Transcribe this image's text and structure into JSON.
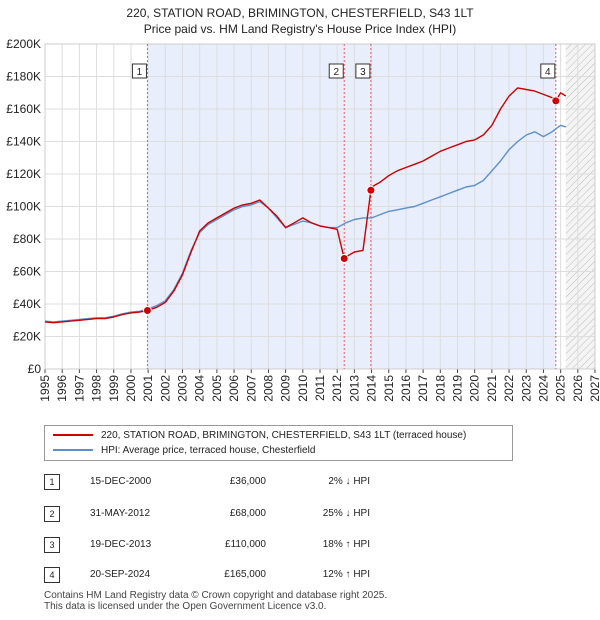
{
  "title_line1": "220, STATION ROAD, BRIMINGTON, CHESTERFIELD, S43 1LT",
  "title_line2": "Price paid vs. HM Land Registry's House Price Index (HPI)",
  "colors": {
    "property_line": "#cc0000",
    "hpi_line": "#5b8fd0",
    "shade": "#e8eefb",
    "grid": "#dddddd",
    "marker_dashed": "#e06060"
  },
  "legend": {
    "property": "220, STATION ROAD, BRIMINGTON, CHESTERFIELD, S43 1LT (terraced house)",
    "hpi": "HPI: Average price, terraced house, Chesterfield"
  },
  "transactions": [
    {
      "num": "1",
      "date": "15-DEC-2000",
      "price": "£36,000",
      "hpi": "2% ↓ HPI"
    },
    {
      "num": "2",
      "date": "31-MAY-2012",
      "price": "£68,000",
      "hpi": "25% ↓ HPI"
    },
    {
      "num": "3",
      "date": "19-DEC-2013",
      "price": "£110,000",
      "hpi": "18% ↑ HPI"
    },
    {
      "num": "4",
      "date": "20-SEP-2024",
      "price": "£165,000",
      "hpi": "12% ↑ HPI"
    }
  ],
  "footer": {
    "line1": "Contains HM Land Registry data © Crown copyright and database right 2025.",
    "line2": "This data is licensed under the Open Government Licence v3.0."
  },
  "chart_data": {
    "type": "line",
    "title": "220, STATION ROAD, BRIMINGTON, CHESTERFIELD, S43 1LT",
    "subtitle": "Price paid vs. HM Land Registry's House Price Index (HPI)",
    "xlabel": "",
    "ylabel": "",
    "xlim": [
      1995,
      2027
    ],
    "ylim": [
      0,
      200000
    ],
    "y_ticks": [
      0,
      20000,
      40000,
      60000,
      80000,
      100000,
      120000,
      140000,
      160000,
      180000,
      200000
    ],
    "y_tick_labels": [
      "£0",
      "£20K",
      "£40K",
      "£60K",
      "£80K",
      "£100K",
      "£120K",
      "£140K",
      "£160K",
      "£180K",
      "£200K"
    ],
    "x_ticks": [
      1995,
      1996,
      1997,
      1998,
      1999,
      2000,
      2001,
      2002,
      2003,
      2004,
      2005,
      2006,
      2007,
      2008,
      2009,
      2010,
      2011,
      2012,
      2013,
      2014,
      2015,
      2016,
      2017,
      2018,
      2019,
      2020,
      2021,
      2022,
      2023,
      2024,
      2025,
      2026,
      2027
    ],
    "x_tick_labels": [
      "1995",
      "1996",
      "1997",
      "1998",
      "1999",
      "2000",
      "2001",
      "2002",
      "2003",
      "2004",
      "2005",
      "2006",
      "2007",
      "2008",
      "2009",
      "2010",
      "2011",
      "2012",
      "2013",
      "2014",
      "2015",
      "2016",
      "2017",
      "2018",
      "2019",
      "2020",
      "2021",
      "2022",
      "2023",
      "2024",
      "2025",
      "2026",
      "2027"
    ],
    "grid": true,
    "legend_position": "below",
    "shaded_region": [
      2000.96,
      2024.72
    ],
    "forecast_hatch_from": 2025.3,
    "series": [
      {
        "name": "220, STATION ROAD, BRIMINGTON, CHESTERFIELD, S43 1LT (terraced house)",
        "color": "#cc0000",
        "x": [
          1995.0,
          1995.5,
          1996.0,
          1996.5,
          1997.0,
          1997.5,
          1998.0,
          1998.5,
          1999.0,
          1999.5,
          2000.0,
          2000.5,
          2000.96,
          2001.5,
          2002.0,
          2002.5,
          2003.0,
          2003.5,
          2004.0,
          2004.5,
          2005.0,
          2005.5,
          2006.0,
          2006.5,
          2007.0,
          2007.5,
          2008.0,
          2008.5,
          2009.0,
          2009.5,
          2010.0,
          2010.5,
          2011.0,
          2011.5,
          2012.0,
          2012.41,
          2012.5,
          2013.0,
          2013.5,
          2013.96,
          2014.0,
          2014.5,
          2015.0,
          2015.5,
          2016.0,
          2016.5,
          2017.0,
          2017.5,
          2018.0,
          2018.5,
          2019.0,
          2019.5,
          2020.0,
          2020.5,
          2021.0,
          2021.5,
          2022.0,
          2022.5,
          2023.0,
          2023.5,
          2024.0,
          2024.5,
          2024.72,
          2025.0,
          2025.3
        ],
        "values": [
          29000,
          28500,
          29000,
          29500,
          30000,
          30500,
          31000,
          31000,
          32000,
          33500,
          34500,
          35000,
          36000,
          38000,
          41000,
          48000,
          58000,
          72000,
          85000,
          90000,
          93000,
          96000,
          99000,
          101000,
          102000,
          104000,
          99000,
          94000,
          87000,
          90000,
          93000,
          90000,
          88000,
          87000,
          86000,
          68000,
          69000,
          72000,
          73000,
          110000,
          112000,
          115000,
          119000,
          122000,
          124000,
          126000,
          128000,
          131000,
          134000,
          136000,
          138000,
          140000,
          141000,
          144000,
          150000,
          160000,
          168000,
          173000,
          172000,
          171000,
          169000,
          167000,
          165000,
          170000,
          168000
        ]
      },
      {
        "name": "HPI: Average price, terraced house, Chesterfield",
        "color": "#5b8fd0",
        "x": [
          1995.0,
          1995.5,
          1996.0,
          1996.5,
          1997.0,
          1997.5,
          1998.0,
          1998.5,
          1999.0,
          1999.5,
          2000.0,
          2000.5,
          2001.0,
          2001.5,
          2002.0,
          2002.5,
          2003.0,
          2003.5,
          2004.0,
          2004.5,
          2005.0,
          2005.5,
          2006.0,
          2006.5,
          2007.0,
          2007.5,
          2008.0,
          2008.5,
          2009.0,
          2009.5,
          2010.0,
          2010.5,
          2011.0,
          2011.5,
          2012.0,
          2012.5,
          2013.0,
          2013.5,
          2014.0,
          2014.5,
          2015.0,
          2015.5,
          2016.0,
          2016.5,
          2017.0,
          2017.5,
          2018.0,
          2018.5,
          2019.0,
          2019.5,
          2020.0,
          2020.5,
          2021.0,
          2021.5,
          2022.0,
          2022.5,
          2023.0,
          2023.5,
          2024.0,
          2024.5,
          2025.0,
          2025.3
        ],
        "values": [
          29500,
          29000,
          29500,
          30000,
          30500,
          31000,
          31500,
          31500,
          32500,
          34000,
          35000,
          35500,
          37000,
          39000,
          42000,
          49000,
          59000,
          73000,
          84000,
          89000,
          92000,
          95000,
          98000,
          100000,
          101000,
          103000,
          99000,
          93000,
          87000,
          89000,
          91000,
          90000,
          88000,
          87000,
          87000,
          90000,
          92000,
          93000,
          93000,
          95000,
          97000,
          98000,
          99000,
          100000,
          102000,
          104000,
          106000,
          108000,
          110000,
          112000,
          113000,
          116000,
          122000,
          128000,
          135000,
          140000,
          144000,
          146000,
          143000,
          146000,
          150000,
          149000
        ]
      }
    ],
    "sale_markers": [
      {
        "label": "1",
        "x": 2000.96,
        "value": 36000
      },
      {
        "label": "2",
        "x": 2012.41,
        "value": 68000
      },
      {
        "label": "3",
        "x": 2013.96,
        "value": 110000
      },
      {
        "label": "4",
        "x": 2024.72,
        "value": 165000
      }
    ]
  }
}
